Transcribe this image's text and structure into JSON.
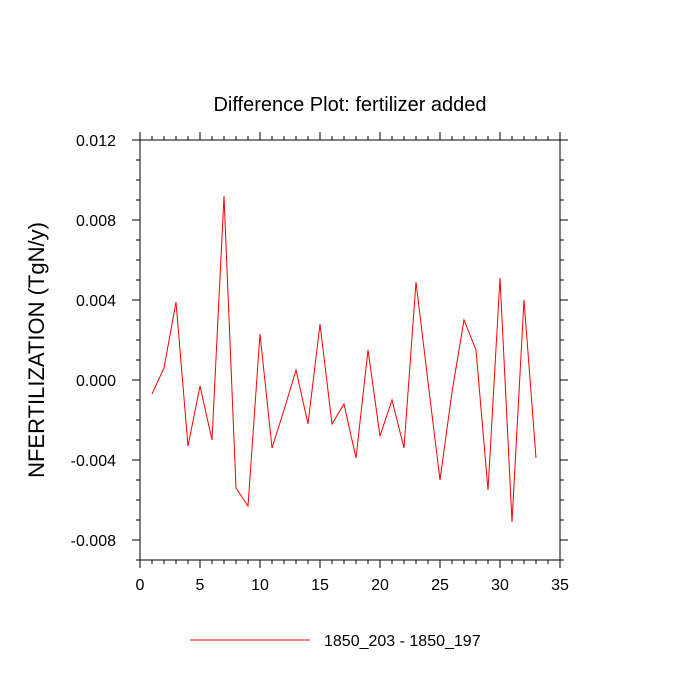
{
  "chart_data": {
    "type": "line",
    "title": "Difference Plot: fertilizer added",
    "xlabel": "",
    "ylabel": "NFERTILIZATION  (TgN/y)",
    "xlim": [
      0,
      35
    ],
    "ylim": [
      -0.009,
      0.012
    ],
    "x_ticks": [
      "0",
      "5",
      "10",
      "15",
      "20",
      "25",
      "30",
      "35"
    ],
    "y_ticks": [
      "0.012",
      "0.008",
      "0.004",
      "0.000",
      "-0.004",
      "-0.008"
    ],
    "x_tick_values": [
      0,
      5,
      10,
      15,
      20,
      25,
      30,
      35
    ],
    "y_tick_values": [
      0.012,
      0.008,
      0.004,
      0.0,
      -0.004,
      -0.008
    ],
    "grid": false,
    "legend_position": "bottom",
    "series": [
      {
        "name": "1850_203 - 1850_197",
        "color": "#ff0000",
        "x": [
          1,
          2,
          3,
          4,
          5,
          6,
          7,
          8,
          9,
          10,
          11,
          12,
          13,
          14,
          15,
          16,
          17,
          18,
          19,
          20,
          21,
          22,
          23,
          24,
          25,
          26,
          27,
          28,
          29,
          30,
          31,
          32,
          33
        ],
        "values": [
          -0.0007,
          0.0006,
          0.0039,
          -0.0033,
          -0.0003,
          -0.003,
          0.0092,
          -0.0054,
          -0.0063,
          0.0023,
          -0.0034,
          -0.0015,
          0.0005,
          -0.0022,
          0.0028,
          -0.0022,
          -0.0012,
          -0.0039,
          0.0015,
          -0.0028,
          -0.001,
          -0.0034,
          0.0049,
          -0.0001,
          -0.005,
          -0.0006,
          0.003,
          0.0015,
          -0.0055,
          0.0051,
          -0.0071,
          0.004,
          -0.0039
        ]
      }
    ]
  }
}
